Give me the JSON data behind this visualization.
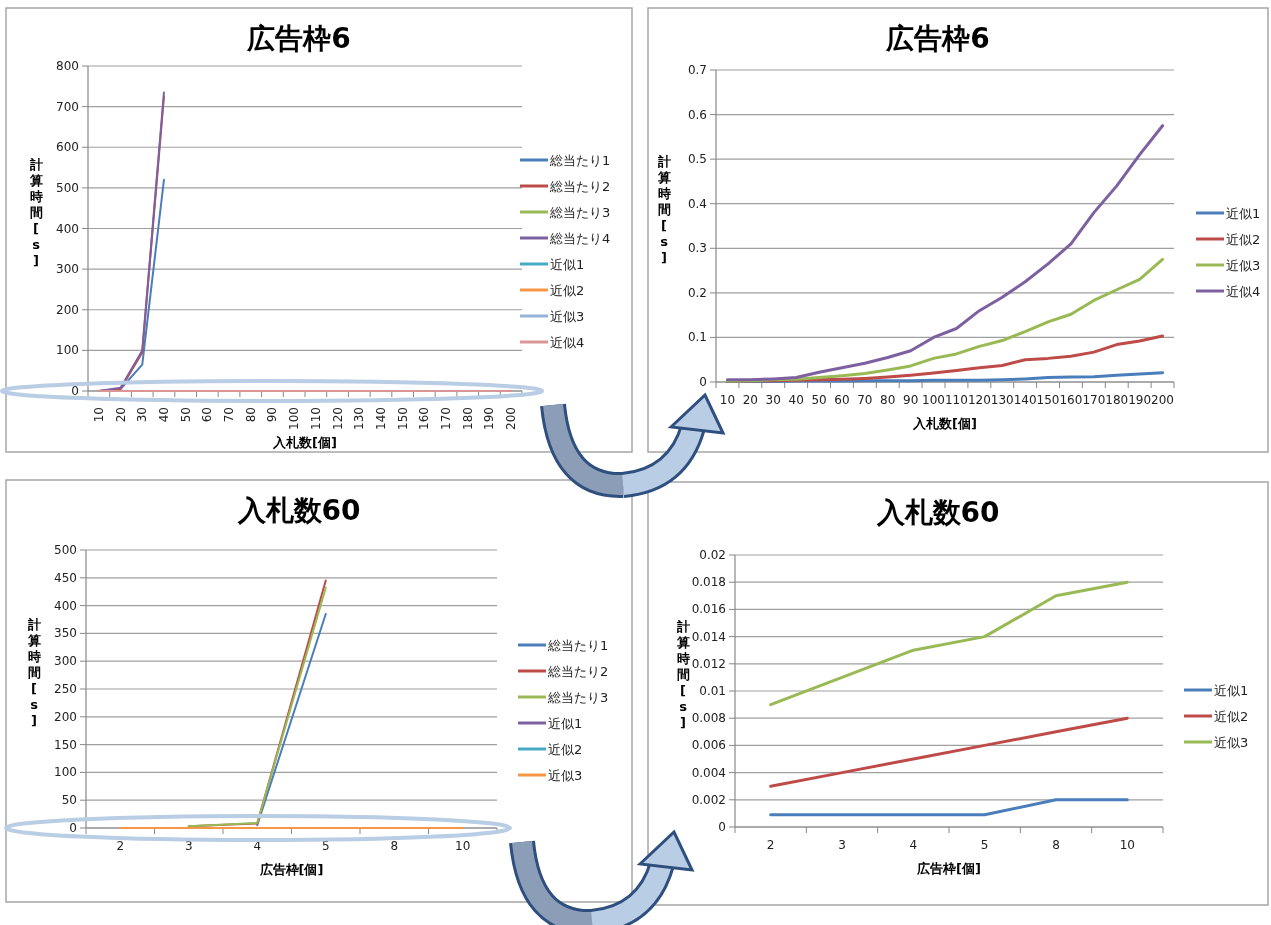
{
  "chart_data": [
    {
      "type": "line",
      "title": "広告枠6",
      "xlabel": "入札数[個]",
      "ylabel": "計算時間[s]",
      "categories": [
        "10",
        "20",
        "30",
        "40",
        "50",
        "60",
        "70",
        "80",
        "90",
        "100",
        "110",
        "120",
        "130",
        "140",
        "150",
        "160",
        "170",
        "180",
        "190",
        "200"
      ],
      "ylim": [
        0,
        800
      ],
      "yticks": [
        0,
        100,
        200,
        300,
        400,
        500,
        600,
        700,
        800
      ],
      "grid": "y",
      "legend": "right",
      "series": [
        {
          "name": "総当たり1",
          "color": "#4a7ebb",
          "values": [
            0,
            5,
            65,
            520,
            null,
            null,
            null,
            null,
            null,
            null,
            null,
            null,
            null,
            null,
            null,
            null,
            null,
            null,
            null,
            null
          ]
        },
        {
          "name": "総当たり2",
          "color": "#be4b48",
          "values": [
            0,
            5,
            95,
            725,
            null,
            null,
            null,
            null,
            null,
            null,
            null,
            null,
            null,
            null,
            null,
            null,
            null,
            null,
            null,
            null
          ]
        },
        {
          "name": "総当たり3",
          "color": "#98b954",
          "values": [
            null,
            null,
            null,
            null,
            null,
            null,
            null,
            null,
            null,
            null,
            null,
            null,
            null,
            null,
            null,
            null,
            null,
            null,
            null,
            null
          ]
        },
        {
          "name": "総当たり4",
          "color": "#7d60a0",
          "values": [
            0,
            8,
            100,
            735,
            null,
            null,
            null,
            null,
            null,
            null,
            null,
            null,
            null,
            null,
            null,
            null,
            null,
            null,
            null,
            null
          ]
        },
        {
          "name": "近似1",
          "color": "#46aac5",
          "values": [
            null,
            null,
            null,
            null,
            null,
            null,
            null,
            null,
            null,
            null,
            null,
            null,
            null,
            null,
            null,
            null,
            null,
            null,
            null,
            null
          ]
        },
        {
          "name": "近似2",
          "color": "#f79646",
          "values": [
            null,
            null,
            null,
            null,
            null,
            null,
            null,
            null,
            null,
            null,
            null,
            null,
            null,
            null,
            null,
            null,
            null,
            null,
            null,
            null
          ]
        },
        {
          "name": "近似3",
          "color": "#95b3d7",
          "values": [
            null,
            null,
            null,
            null,
            null,
            null,
            null,
            null,
            null,
            null,
            null,
            null,
            null,
            null,
            null,
            null,
            null,
            null,
            null,
            null
          ]
        },
        {
          "name": "近似4",
          "color": "#d99694",
          "values": [
            0,
            0,
            0,
            0,
            0,
            0,
            0,
            0,
            0,
            0,
            0,
            0,
            0,
            0,
            0,
            0,
            0,
            0,
            0,
            0
          ]
        }
      ]
    },
    {
      "type": "line",
      "title": "広告枠6",
      "xlabel": "入札数[個]",
      "ylabel": "計算時間[s]",
      "categories": [
        "10",
        "20",
        "30",
        "40",
        "50",
        "60",
        "70",
        "80",
        "90",
        "100",
        "110",
        "120",
        "130",
        "140",
        "150",
        "160",
        "170",
        "180",
        "190",
        "200"
      ],
      "ylim": [
        0,
        0.7
      ],
      "yticks": [
        0,
        0.1,
        0.2,
        0.3,
        0.4,
        0.5,
        0.6,
        0.7
      ],
      "grid": "y",
      "legend": "right",
      "series": [
        {
          "name": "近似1",
          "color": "#4a7ebb",
          "values": [
            0.001,
            0.001,
            0.001,
            0.002,
            0.002,
            0.002,
            0.003,
            0.003,
            0.003,
            0.004,
            0.004,
            0.004,
            0.005,
            0.007,
            0.01,
            0.011,
            0.012,
            0.015,
            0.018,
            0.021
          ]
        },
        {
          "name": "近似2",
          "color": "#be4b48",
          "values": [
            0.002,
            0.002,
            0.003,
            0.004,
            0.005,
            0.006,
            0.008,
            0.011,
            0.015,
            0.02,
            0.026,
            0.032,
            0.037,
            0.05,
            0.053,
            0.058,
            0.067,
            0.084,
            0.092,
            0.103
          ]
        },
        {
          "name": "近似3",
          "color": "#98b954",
          "values": [
            0.002,
            0.003,
            0.005,
            0.006,
            0.01,
            0.014,
            0.019,
            0.027,
            0.036,
            0.053,
            0.063,
            0.08,
            0.093,
            0.113,
            0.135,
            0.152,
            0.183,
            0.207,
            0.23,
            0.275
          ]
        },
        {
          "name": "近似4",
          "color": "#7d60a0",
          "values": [
            0.005,
            0.005,
            0.007,
            0.01,
            0.022,
            0.032,
            0.042,
            0.055,
            0.07,
            0.1,
            0.12,
            0.16,
            0.19,
            0.225,
            0.265,
            0.31,
            0.38,
            0.44,
            0.51,
            0.575
          ]
        }
      ]
    },
    {
      "type": "line",
      "title": "入札数60",
      "xlabel": "広告枠[個]",
      "ylabel": "計算時間[s]",
      "categories": [
        "2",
        "3",
        "4",
        "5",
        "8",
        "10"
      ],
      "ylim": [
        0,
        500
      ],
      "yticks": [
        0,
        50,
        100,
        150,
        200,
        250,
        300,
        350,
        400,
        450,
        500
      ],
      "grid": "y",
      "legend": "right",
      "series": [
        {
          "name": "総当たり1",
          "color": "#4a7ebb",
          "values": [
            null,
            null,
            5,
            385,
            null,
            null
          ]
        },
        {
          "name": "総当たり2",
          "color": "#be4b48",
          "values": [
            null,
            3,
            8,
            445,
            null,
            null
          ]
        },
        {
          "name": "総当たり3",
          "color": "#98b954",
          "values": [
            null,
            3,
            9,
            432,
            null,
            null
          ]
        },
        {
          "name": "近似1",
          "color": "#7d60a0",
          "values": [
            null,
            null,
            null,
            null,
            null,
            null
          ]
        },
        {
          "name": "近似2",
          "color": "#46aac5",
          "values": [
            null,
            null,
            null,
            null,
            null,
            null
          ]
        },
        {
          "name": "近似3",
          "color": "#f79646",
          "values": [
            0,
            0,
            0,
            0,
            0,
            0
          ]
        }
      ]
    },
    {
      "type": "line",
      "title": "入札数60",
      "xlabel": "広告枠[個]",
      "ylabel": "計算時間[s]",
      "categories": [
        "2",
        "3",
        "4",
        "5",
        "8",
        "10"
      ],
      "ylim": [
        0,
        0.02
      ],
      "yticks": [
        0,
        0.002,
        0.004,
        0.006,
        0.008,
        0.01,
        0.012,
        0.014,
        0.016,
        0.018,
        0.02
      ],
      "grid": "y",
      "legend": "right",
      "series": [
        {
          "name": "近似1",
          "color": "#4a7ebb",
          "values": [
            0.0009,
            0.0009,
            0.0009,
            0.0009,
            0.002,
            0.002
          ]
        },
        {
          "name": "近似2",
          "color": "#be4b48",
          "values": [
            0.003,
            0.004,
            0.005,
            0.006,
            0.007,
            0.008
          ]
        },
        {
          "name": "近似3",
          "color": "#98b954",
          "values": [
            0.009,
            0.011,
            0.013,
            0.014,
            0.017,
            0.018
          ]
        }
      ]
    }
  ]
}
